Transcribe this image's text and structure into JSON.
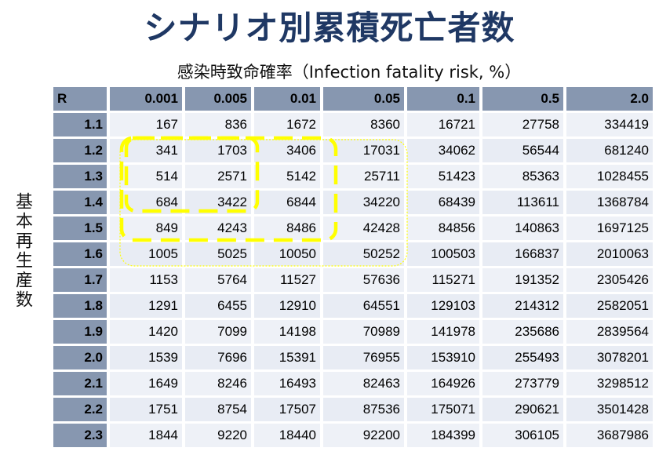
{
  "title": "シナリオ別累積死亡者数",
  "subtitle": "感染時致命確率（Infection fatality risk, %）",
  "ylabel": "基本再生産数",
  "table": {
    "corner": "R",
    "columns": [
      "0.001",
      "0.005",
      "0.01",
      "0.05",
      "0.1",
      "0.5",
      "2.0"
    ],
    "rows": [
      {
        "r": "1.1",
        "values": [
          "167",
          "836",
          "1672",
          "8360",
          "16721",
          "27758",
          "334419"
        ]
      },
      {
        "r": "1.2",
        "values": [
          "341",
          "1703",
          "3406",
          "17031",
          "34062",
          "56544",
          "681240"
        ]
      },
      {
        "r": "1.3",
        "values": [
          "514",
          "2571",
          "5142",
          "25711",
          "51423",
          "85363",
          "1028455"
        ]
      },
      {
        "r": "1.4",
        "values": [
          "684",
          "3422",
          "6844",
          "34220",
          "68439",
          "113611",
          "1368784"
        ]
      },
      {
        "r": "1.5",
        "values": [
          "849",
          "4243",
          "8486",
          "42428",
          "84856",
          "140863",
          "1697125"
        ]
      },
      {
        "r": "1.6",
        "values": [
          "1005",
          "5025",
          "10050",
          "50252",
          "100503",
          "166837",
          "2010063"
        ]
      },
      {
        "r": "1.7",
        "values": [
          "1153",
          "5764",
          "11527",
          "57636",
          "115271",
          "191352",
          "2305426"
        ]
      },
      {
        "r": "1.8",
        "values": [
          "1291",
          "6455",
          "12910",
          "64551",
          "129103",
          "214312",
          "2582051"
        ]
      },
      {
        "r": "1.9",
        "values": [
          "1420",
          "7099",
          "14198",
          "70989",
          "141978",
          "235686",
          "2839564"
        ]
      },
      {
        "r": "2.0",
        "values": [
          "1539",
          "7696",
          "15391",
          "76955",
          "153910",
          "255493",
          "3078201"
        ]
      },
      {
        "r": "2.1",
        "values": [
          "1649",
          "8246",
          "16493",
          "82463",
          "164926",
          "273779",
          "3298512"
        ]
      },
      {
        "r": "2.2",
        "values": [
          "1751",
          "8754",
          "17507",
          "87536",
          "175071",
          "290621",
          "3501428"
        ]
      },
      {
        "r": "2.3",
        "values": [
          "1844",
          "9220",
          "18440",
          "92200",
          "184399",
          "306105",
          "3687986"
        ]
      }
    ]
  },
  "colors": {
    "title": "#1f3864",
    "header_bg": "#8797b0",
    "cell_bg": "#e8ecf4",
    "highlight": "#ffff00"
  }
}
